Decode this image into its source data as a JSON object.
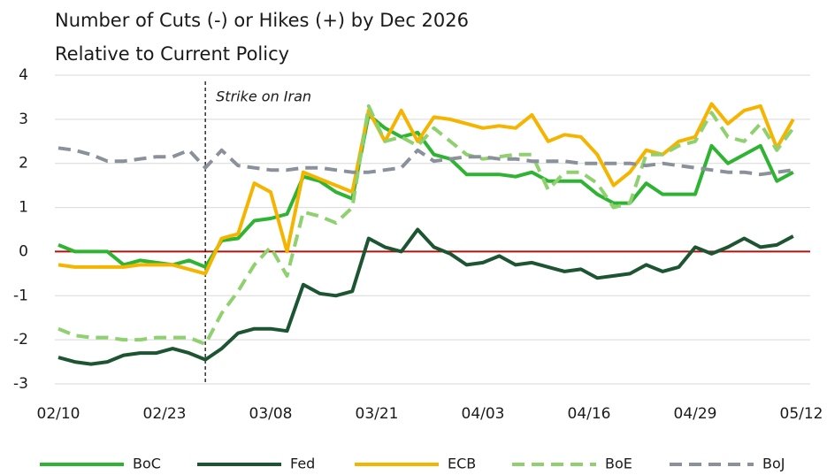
{
  "chart_data": {
    "type": "line",
    "title": "Number of Cuts (-) or Hikes (+) by Dec 2026",
    "subtitle": "Relative to Current Policy",
    "x": [
      "02/10",
      "02/12",
      "02/14",
      "02/16",
      "02/18",
      "02/20",
      "02/22",
      "02/24",
      "02/26",
      "02/28",
      "03/02",
      "03/04",
      "03/06",
      "03/08",
      "03/10",
      "03/12",
      "03/14",
      "03/16",
      "03/18",
      "03/20",
      "03/22",
      "03/24",
      "03/26",
      "03/28",
      "03/30",
      "04/01",
      "04/03",
      "04/05",
      "04/07",
      "04/09",
      "04/11",
      "04/13",
      "04/15",
      "04/17",
      "04/19",
      "04/21",
      "04/23",
      "04/25",
      "04/27",
      "04/29",
      "05/01",
      "05/03",
      "05/05",
      "05/07",
      "05/09",
      "05/11"
    ],
    "xlim": [
      "02/10",
      "05/12"
    ],
    "xticks": [
      "02/10",
      "02/23",
      "03/08",
      "03/21",
      "04/03",
      "04/16",
      "04/29",
      "05/12"
    ],
    "ylim": [
      -3,
      4
    ],
    "yticks": [
      -3,
      -2,
      -1,
      0,
      1,
      2,
      3,
      4
    ],
    "grid": true,
    "zero_line_color": "#b0120f",
    "annotation": {
      "text": "Strike on Iran",
      "x": "02/28"
    },
    "series": [
      {
        "name": "BoC",
        "color": "#2eb432",
        "dashed": false,
        "values": [
          0.15,
          0,
          0,
          0,
          -0.3,
          -0.2,
          -0.25,
          -0.3,
          -0.2,
          -0.35,
          0.25,
          0.3,
          0.7,
          0.75,
          0.85,
          1.7,
          1.6,
          1.35,
          1.2,
          3.1,
          2.8,
          2.6,
          2.7,
          2.2,
          2.1,
          1.75,
          1.75,
          1.75,
          1.7,
          1.8,
          1.6,
          1.6,
          1.6,
          1.3,
          1.1,
          1.1,
          1.55,
          1.3,
          1.3,
          1.3,
          2.4,
          2.0,
          2.2,
          2.4,
          1.6,
          1.8
        ]
      },
      {
        "name": "Fed",
        "color": "#1d5533",
        "dashed": false,
        "values": [
          -2.4,
          -2.5,
          -2.55,
          -2.5,
          -2.35,
          -2.3,
          -2.3,
          -2.2,
          -2.3,
          -2.45,
          -2.2,
          -1.85,
          -1.75,
          -1.75,
          -1.8,
          -0.75,
          -0.95,
          -1.0,
          -0.9,
          0.3,
          0.1,
          0.0,
          0.5,
          0.1,
          -0.05,
          -0.3,
          -0.25,
          -0.1,
          -0.3,
          -0.25,
          -0.35,
          -0.45,
          -0.4,
          -0.6,
          -0.55,
          -0.5,
          -0.3,
          -0.45,
          -0.35,
          0.1,
          -0.05,
          0.1,
          0.3,
          0.1,
          0.15,
          0.35
        ]
      },
      {
        "name": "ECB",
        "color": "#f4b400",
        "dashed": false,
        "values": [
          -0.3,
          -0.35,
          -0.35,
          -0.35,
          -0.35,
          -0.3,
          -0.3,
          -0.3,
          -0.4,
          -0.5,
          0.3,
          0.4,
          1.55,
          1.35,
          0.0,
          1.8,
          1.65,
          1.5,
          1.35,
          3.2,
          2.5,
          3.2,
          2.5,
          3.05,
          3.0,
          2.9,
          2.8,
          2.85,
          2.8,
          3.1,
          2.5,
          2.65,
          2.6,
          2.2,
          1.5,
          1.8,
          2.3,
          2.2,
          2.5,
          2.6,
          3.35,
          2.9,
          3.2,
          3.3,
          2.35,
          3.0
        ]
      },
      {
        "name": "BoE",
        "color": "#8fd06f",
        "dashed": true,
        "values": [
          -1.75,
          -1.9,
          -1.95,
          -1.95,
          -2.0,
          -2.0,
          -1.95,
          -1.95,
          -1.95,
          -2.1,
          -1.4,
          -0.9,
          -0.3,
          0.1,
          -0.55,
          0.9,
          0.8,
          0.65,
          1.0,
          3.3,
          2.5,
          2.6,
          2.4,
          2.8,
          2.5,
          2.2,
          2.1,
          2.15,
          2.2,
          2.2,
          1.4,
          1.8,
          1.8,
          1.55,
          1.0,
          1.1,
          2.2,
          2.2,
          2.4,
          2.5,
          3.15,
          2.6,
          2.5,
          2.9,
          2.3,
          2.8
        ]
      },
      {
        "name": "BoJ",
        "color": "#8b919b",
        "dashed": true,
        "values": [
          2.35,
          2.3,
          2.2,
          2.05,
          2.05,
          2.1,
          2.15,
          2.15,
          2.3,
          1.9,
          2.3,
          1.95,
          1.9,
          1.85,
          1.85,
          1.9,
          1.9,
          1.85,
          1.8,
          1.8,
          1.85,
          1.9,
          2.3,
          2.05,
          2.1,
          2.15,
          2.15,
          2.1,
          2.1,
          2.05,
          2.05,
          2.05,
          2.0,
          2.0,
          2.0,
          2.0,
          1.95,
          2.0,
          1.95,
          1.9,
          1.85,
          1.8,
          1.8,
          1.75,
          1.8,
          1.85
        ]
      }
    ]
  }
}
